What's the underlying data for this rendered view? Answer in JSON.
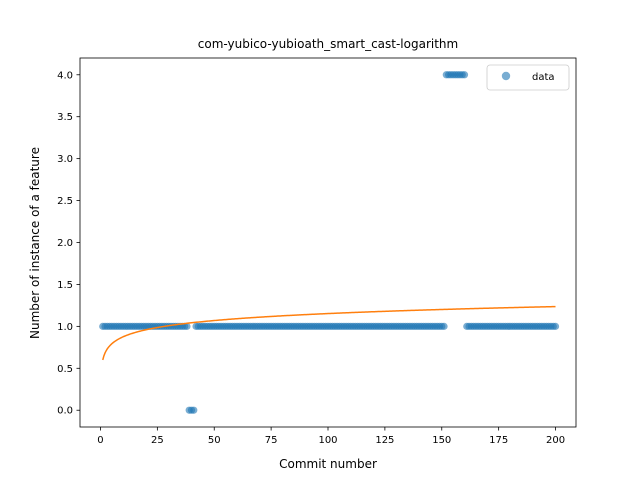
{
  "chart_data": {
    "type": "scatter",
    "title": "com-yubico-yubioath_smart_cast-logarithm",
    "xlabel": "Commit number",
    "ylabel": "Number of instance of a feature",
    "xlim": [
      -9,
      209
    ],
    "ylim": [
      -0.2,
      4.2
    ],
    "xticks": [
      0,
      25,
      50,
      75,
      100,
      125,
      150,
      175,
      200
    ],
    "yticks": [
      0.0,
      0.5,
      1.0,
      1.5,
      2.0,
      2.5,
      3.0,
      3.5,
      4.0
    ],
    "ytick_labels": [
      "0.0",
      "0.5",
      "1.0",
      "1.5",
      "2.0",
      "2.5",
      "3.0",
      "3.5",
      "4.0"
    ],
    "legend": {
      "placement": "top-right",
      "entries": [
        "data"
      ]
    },
    "grid": false,
    "series": [
      {
        "name": "data",
        "kind": "scatter",
        "color": "#1f77b4",
        "segments": [
          {
            "x_from": 1,
            "x_to": 38,
            "y": 1
          },
          {
            "x_from": 39,
            "x_to": 41,
            "y": 0
          },
          {
            "x_from": 42,
            "x_to": 151,
            "y": 1
          },
          {
            "x_from": 152,
            "x_to": 160,
            "y": 4
          },
          {
            "x_from": 161,
            "x_to": 200,
            "y": 1
          }
        ]
      },
      {
        "name": "",
        "kind": "line",
        "color": "#ff7f0e",
        "fit": "logarithmic",
        "a": 0.6,
        "b": 0.12,
        "x_from": 1,
        "x_to": 200
      }
    ]
  }
}
